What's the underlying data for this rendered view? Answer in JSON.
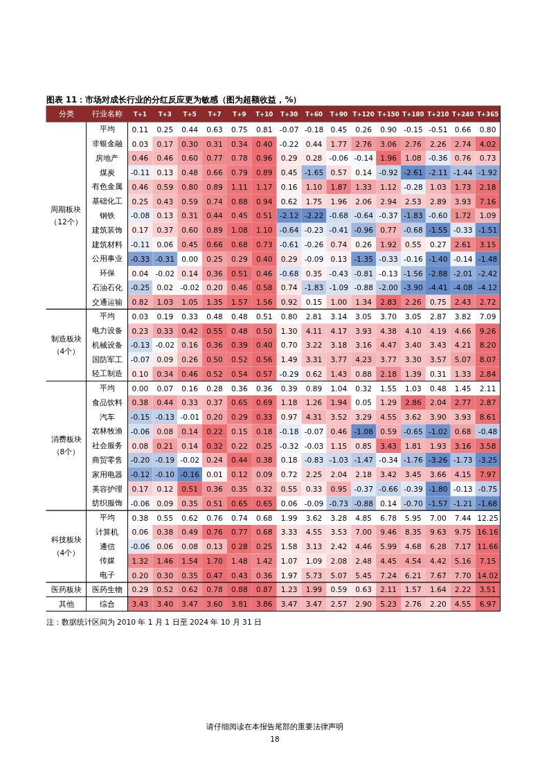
{
  "chart_data": {
    "type": "heatmap",
    "title": "图表 11：市场对成长行业的分红反应更为敏感（图为超额收益，%）",
    "categories": [
      "T+1",
      "T+3",
      "T+5",
      "T+7",
      "T+9",
      "T+10",
      "T+30",
      "T+60",
      "T+90",
      "T+120",
      "T+150",
      "T+180",
      "T+210",
      "T+240",
      "T+365"
    ],
    "y_categories": [
      "平均",
      "非银金融",
      "房地产",
      "煤炭",
      "有色金属",
      "基础化工",
      "钢铁",
      "建筑装饰",
      "建筑材料",
      "公用事业",
      "环保",
      "石油石化",
      "交通运输",
      "平均",
      "电力设备",
      "机械设备",
      "国防军工",
      "轻工制造",
      "平均",
      "食品饮料",
      "汽车",
      "农林牧渔",
      "社会服务",
      "商贸零售",
      "家用电器",
      "美容护理",
      "纺织服饰",
      "平均",
      "计算机",
      "通信",
      "传媒",
      "电子",
      "医药生物",
      "综合"
    ],
    "y2_categories": [
      null,
      null,
      null,
      null,
      null,
      null,
      "周期板块（12个）",
      null,
      null,
      null,
      null,
      null,
      null,
      null,
      null,
      "制造板块（4个）",
      null,
      null,
      null,
      null,
      null,
      null,
      "消费板块（8个）",
      null,
      null,
      null,
      null,
      null,
      null,
      "科技板块（4个）",
      null,
      null,
      "医药板块",
      "其他"
    ],
    "cell_labels": [
      [
        "0.11",
        "0.25",
        "0.44",
        "0.63",
        "0.75",
        "0.81",
        "-0.07",
        "-0.18",
        "0.45",
        "0.26",
        "0.90",
        "-0.15",
        "-0.51",
        "0.66",
        "0.80"
      ],
      [
        "0.03",
        "0.17",
        "0.30",
        "0.31",
        "0.34",
        "0.40",
        "-0.22",
        "0.44",
        "1.77",
        "2.76",
        "3.06",
        "2.76",
        "2.26",
        "2.74",
        "4.02"
      ],
      [
        "0.46",
        "0.46",
        "0.60",
        "0.77",
        "0.78",
        "0.96",
        "0.29",
        "0.28",
        "-0.06",
        "-0.14",
        "1.96",
        "1.08",
        "-0.36",
        "0.76",
        "0.73"
      ],
      [
        "-0.11",
        "0.13",
        "0.48",
        "0.66",
        "0.79",
        "0.89",
        "0.45",
        "-1.65",
        "0.57",
        "0.14",
        "-0.92",
        "-2.61",
        "-2.11",
        "-1.44",
        "-1.92"
      ],
      [
        "0.46",
        "0.59",
        "0.80",
        "0.89",
        "1.11",
        "1.17",
        "0.16",
        "1.10",
        "1.87",
        "1.33",
        "1.12",
        "-0.28",
        "1.03",
        "1.73",
        "2.18"
      ],
      [
        "0.25",
        "0.43",
        "0.59",
        "0.74",
        "0.88",
        "0.94",
        "0.62",
        "1.75",
        "1.96",
        "2.06",
        "2.94",
        "2.53",
        "2.89",
        "3.93",
        "7.16"
      ],
      [
        "-0.08",
        "0.13",
        "0.31",
        "0.44",
        "0.45",
        "0.51",
        "-2.12",
        "-2.22",
        "-0.68",
        "-0.64",
        "-0.37",
        "-1.83",
        "-0.60",
        "1.72",
        "1.09"
      ],
      [
        "0.17",
        "0.37",
        "0.60",
        "0.89",
        "1.08",
        "1.10",
        "-0.64",
        "-0.23",
        "-0.41",
        "-0.96",
        "0.77",
        "-0.68",
        "-1.55",
        "-0.33",
        "-1.51"
      ],
      [
        "-0.11",
        "0.06",
        "0.45",
        "0.66",
        "0.68",
        "0.73",
        "-0.61",
        "-0.26",
        "0.74",
        "0.26",
        "1.92",
        "0.55",
        "0.27",
        "2.61",
        "3.15"
      ],
      [
        "-0.33",
        "-0.31",
        "0.00",
        "0.25",
        "0.29",
        "0.40",
        "0.29",
        "-0.09",
        "0.13",
        "-1.35",
        "-0.33",
        "-0.16",
        "-1.40",
        "-0.14",
        "-1.48"
      ],
      [
        "0.04",
        "-0.02",
        "0.14",
        "0.36",
        "0.51",
        "0.46",
        "-0.68",
        "0.35",
        "-0.43",
        "-0.81",
        "-0.13",
        "-1.56",
        "-2.88",
        "-2.01",
        "-2.42"
      ],
      [
        "-0.25",
        "0.02",
        "-0.02",
        "0.20",
        "0.46",
        "0.58",
        "0.74",
        "-1.83",
        "-1.09",
        "-0.88",
        "-2.00",
        "-3.90",
        "-4.41",
        "-4.08",
        "-4.12"
      ],
      [
        "0.82",
        "1.03",
        "1.05",
        "1.35",
        "1.57",
        "1.56",
        "0.92",
        "0.15",
        "1.00",
        "1.34",
        "2.83",
        "2.26",
        "0.75",
        "2.43",
        "2.72"
      ],
      [
        "0.03",
        "0.19",
        "0.33",
        "0.48",
        "0.48",
        "0.51",
        "0.80",
        "2.81",
        "3.14",
        "3.05",
        "3.70",
        "3.05",
        "2.87",
        "3.82",
        "7.09"
      ],
      [
        "0.23",
        "0.33",
        "0.42",
        "0.55",
        "0.48",
        "0.50",
        "1.30",
        "4.11",
        "4.17",
        "3.93",
        "4.38",
        "4.10",
        "4.19",
        "4.66",
        "9.26"
      ],
      [
        "-0.13",
        "-0.02",
        "0.16",
        "0.36",
        "0.39",
        "0.40",
        "0.70",
        "3.22",
        "3.18",
        "3.16",
        "4.47",
        "3.40",
        "3.43",
        "4.21",
        "8.20"
      ],
      [
        "-0.07",
        "0.09",
        "0.26",
        "0.50",
        "0.52",
        "0.56",
        "1.49",
        "3.31",
        "3.77",
        "4.23",
        "3.77",
        "3.30",
        "3.57",
        "5.07",
        "8.07"
      ],
      [
        "0.10",
        "0.34",
        "0.46",
        "0.52",
        "0.54",
        "0.57",
        "-0.29",
        "0.62",
        "1.43",
        "0.88",
        "2.18",
        "1.39",
        "0.31",
        "1.33",
        "2.84"
      ],
      [
        "0.00",
        "0.07",
        "0.16",
        "0.28",
        "0.36",
        "0.36",
        "0.39",
        "0.89",
        "1.04",
        "0.32",
        "1.55",
        "1.03",
        "0.48",
        "1.45",
        "2.11"
      ],
      [
        "0.38",
        "0.44",
        "0.33",
        "0.37",
        "0.65",
        "0.69",
        "1.18",
        "1.26",
        "1.94",
        "0.05",
        "1.29",
        "2.86",
        "2.04",
        "2.77",
        "2.87"
      ],
      [
        "-0.15",
        "-0.13",
        "-0.01",
        "0.20",
        "0.29",
        "0.33",
        "0.97",
        "4.31",
        "3.52",
        "3.29",
        "4.55",
        "3.62",
        "3.90",
        "3.93",
        "8.61"
      ],
      [
        "-0.06",
        "0.08",
        "0.14",
        "0.22",
        "0.15",
        "0.18",
        "-0.18",
        "-0.07",
        "0.46",
        "-1.08",
        "0.59",
        "-0.65",
        "-1.02",
        "0.68",
        "-0.48"
      ],
      [
        "0.08",
        "0.21",
        "0.14",
        "0.32",
        "0.22",
        "0.25",
        "-0.32",
        "-0.03",
        "1.15",
        "0.85",
        "3.43",
        "1.81",
        "1.93",
        "3.16",
        "3.58"
      ],
      [
        "-0.20",
        "-0.19",
        "-0.02",
        "0.24",
        "0.44",
        "0.38",
        "0.18",
        "-0.83",
        "-1.03",
        "-1.47",
        "-0.34",
        "-1.76",
        "-3.26",
        "-1.73",
        "-3.25"
      ],
      [
        "-0.12",
        "-0.10",
        "-0.16",
        "0.01",
        "0.12",
        "0.09",
        "0.72",
        "2.25",
        "2.04",
        "2.18",
        "3.42",
        "3.45",
        "3.66",
        "4.15",
        "7.97"
      ],
      [
        "0.17",
        "0.12",
        "0.51",
        "0.36",
        "0.35",
        "0.32",
        "0.55",
        "0.33",
        "0.95",
        "-0.37",
        "-0.66",
        "-0.39",
        "-1.80",
        "-0.13",
        "-0.75"
      ],
      [
        "-0.06",
        "0.09",
        "0.35",
        "0.51",
        "0.65",
        "0.65",
        "0.06",
        "-0.09",
        "-0.73",
        "-0.88",
        "0.14",
        "-0.70",
        "-1.57",
        "-1.21",
        "-1.68"
      ],
      [
        "0.38",
        "0.55",
        "0.62",
        "0.76",
        "0.74",
        "0.68",
        "1.99",
        "3.62",
        "3.28",
        "4.85",
        "6.78",
        "5.95",
        "7.00",
        "7.44",
        "12.25"
      ],
      [
        "0.06",
        "0.38",
        "0.49",
        "0.76",
        "0.77",
        "0.68",
        "3.33",
        "4.55",
        "3.53",
        "7.00",
        "9.46",
        "8.35",
        "9.63",
        "9.75",
        "16.16"
      ],
      [
        "-0.06",
        "0.06",
        "0.08",
        "0.13",
        "0.28",
        "0.25",
        "1.58",
        "3.13",
        "2.42",
        "4.46",
        "5.99",
        "4.68",
        "6.28",
        "7.17",
        "11.66"
      ],
      [
        "1.32",
        "1.46",
        "1.54",
        "1.70",
        "1.48",
        "1.42",
        "1.07",
        "1.09",
        "2.08",
        "2.48",
        "4.45",
        "4.54",
        "4.42",
        "5.16",
        "7.15"
      ],
      [
        "0.20",
        "0.30",
        "0.35",
        "0.47",
        "0.43",
        "0.36",
        "1.97",
        "5.73",
        "5.07",
        "5.45",
        "7.24",
        "6.21",
        "7.67",
        "7.70",
        "14.02"
      ],
      [
        "0.29",
        "0.52",
        "0.62",
        "0.78",
        "0.88",
        "0.87",
        "1.23",
        "1.99",
        "0.59",
        "0.63",
        "2.11",
        "1.57",
        "1.64",
        "2.22",
        "3.51"
      ],
      [
        "3.43",
        "3.40",
        "3.47",
        "3.60",
        "3.81",
        "3.86",
        "3.47",
        "3.47",
        "2.57",
        "2.90",
        "5.23",
        "2.76",
        "2.20",
        "4.55",
        "6.97"
      ]
    ],
    "cells": [
      [
        0.11,
        0.25,
        0.44,
        0.63,
        0.75,
        0.81,
        -0.07,
        -0.18,
        0.45,
        0.26,
        0.9,
        -0.15,
        -0.51,
        0.66,
        0.8
      ],
      [
        0.03,
        0.17,
        0.3,
        0.31,
        0.34,
        0.4,
        -0.22,
        0.44,
        1.77,
        2.76,
        3.06,
        2.76,
        2.26,
        2.74,
        4.02
      ],
      [
        0.46,
        0.46,
        0.6,
        0.77,
        0.78,
        0.96,
        0.29,
        0.28,
        -0.06,
        -0.14,
        1.96,
        1.08,
        -0.36,
        0.76,
        0.73
      ],
      [
        -0.11,
        0.13,
        0.48,
        0.66,
        0.79,
        0.89,
        0.45,
        -1.65,
        0.57,
        0.14,
        -0.92,
        -2.61,
        -2.11,
        -1.44,
        -1.92
      ],
      [
        0.46,
        0.59,
        0.8,
        0.89,
        1.11,
        1.17,
        0.16,
        1.1,
        1.87,
        1.33,
        1.12,
        -0.28,
        1.03,
        1.73,
        2.18
      ],
      [
        0.25,
        0.43,
        0.59,
        0.74,
        0.88,
        0.94,
        0.62,
        1.75,
        1.96,
        2.06,
        2.94,
        2.53,
        2.89,
        3.93,
        7.16
      ],
      [
        -0.08,
        0.13,
        0.31,
        0.44,
        0.45,
        0.51,
        -2.12,
        -2.22,
        -0.68,
        -0.64,
        -0.37,
        -1.83,
        -0.6,
        1.72,
        1.09
      ],
      [
        0.17,
        0.37,
        0.6,
        0.89,
        1.08,
        1.1,
        -0.64,
        -0.23,
        -0.41,
        -0.96,
        0.77,
        -0.68,
        -1.55,
        -0.33,
        -1.51
      ],
      [
        -0.11,
        0.06,
        0.45,
        0.66,
        0.68,
        0.73,
        -0.61,
        -0.26,
        0.74,
        0.26,
        1.92,
        0.55,
        0.27,
        2.61,
        3.15
      ],
      [
        -0.33,
        -0.31,
        0.0,
        0.25,
        0.29,
        0.4,
        0.29,
        -0.09,
        0.13,
        -1.35,
        -0.33,
        -0.16,
        -1.4,
        -0.14,
        -1.48
      ],
      [
        0.04,
        -0.02,
        0.14,
        0.36,
        0.51,
        0.46,
        -0.68,
        0.35,
        -0.43,
        -0.81,
        -0.13,
        -1.56,
        -2.88,
        -2.01,
        -2.42
      ],
      [
        -0.25,
        0.02,
        -0.02,
        0.2,
        0.46,
        0.58,
        0.74,
        -1.83,
        -1.09,
        -0.88,
        -2.0,
        -3.9,
        -4.41,
        -4.08,
        -4.12
      ],
      [
        0.82,
        1.03,
        1.05,
        1.35,
        1.57,
        1.56,
        0.92,
        0.15,
        1.0,
        1.34,
        2.83,
        2.26,
        0.75,
        2.43,
        2.72
      ],
      [
        0.03,
        0.19,
        0.33,
        0.48,
        0.48,
        0.51,
        0.8,
        2.81,
        3.14,
        3.05,
        3.7,
        3.05,
        2.87,
        3.82,
        7.09
      ],
      [
        0.23,
        0.33,
        0.42,
        0.55,
        0.48,
        0.5,
        1.3,
        4.11,
        4.17,
        3.93,
        4.38,
        4.1,
        4.19,
        4.66,
        9.26
      ],
      [
        -0.13,
        -0.02,
        0.16,
        0.36,
        0.39,
        0.4,
        0.7,
        3.22,
        3.18,
        3.16,
        4.47,
        3.4,
        3.43,
        4.21,
        8.2
      ],
      [
        -0.07,
        0.09,
        0.26,
        0.5,
        0.52,
        0.56,
        1.49,
        3.31,
        3.77,
        4.23,
        3.77,
        3.3,
        3.57,
        5.07,
        8.07
      ],
      [
        0.1,
        0.34,
        0.46,
        0.52,
        0.54,
        0.57,
        -0.29,
        0.62,
        1.43,
        0.88,
        2.18,
        1.39,
        0.31,
        1.33,
        2.84
      ],
      [
        0.0,
        0.07,
        0.16,
        0.28,
        0.36,
        0.36,
        0.39,
        0.89,
        1.04,
        0.32,
        1.55,
        1.03,
        0.48,
        1.45,
        2.11
      ],
      [
        0.38,
        0.44,
        0.33,
        0.37,
        0.65,
        0.69,
        1.18,
        1.26,
        1.94,
        0.05,
        1.29,
        2.86,
        2.04,
        2.77,
        2.87
      ],
      [
        -0.15,
        -0.13,
        -0.01,
        0.2,
        0.29,
        0.33,
        0.97,
        4.31,
        3.52,
        3.29,
        4.55,
        3.62,
        3.9,
        3.93,
        8.61
      ],
      [
        -0.06,
        0.08,
        0.14,
        0.22,
        0.15,
        0.18,
        -0.18,
        -0.07,
        0.46,
        -1.08,
        0.59,
        -0.65,
        -1.02,
        0.68,
        -0.48
      ],
      [
        0.08,
        0.21,
        0.14,
        0.32,
        0.22,
        0.25,
        -0.32,
        -0.03,
        1.15,
        0.85,
        3.43,
        1.81,
        1.93,
        3.16,
        3.58
      ],
      [
        -0.2,
        -0.19,
        -0.02,
        0.24,
        0.44,
        0.38,
        0.18,
        -0.83,
        -1.03,
        -1.47,
        -0.34,
        -1.76,
        -3.26,
        -1.73,
        -3.25
      ],
      [
        -0.12,
        -0.1,
        -0.16,
        0.01,
        0.12,
        0.09,
        0.72,
        2.25,
        2.04,
        2.18,
        3.42,
        3.45,
        3.66,
        4.15,
        7.97
      ],
      [
        0.17,
        0.12,
        0.51,
        0.36,
        0.35,
        0.32,
        0.55,
        0.33,
        0.95,
        -0.37,
        -0.66,
        -0.39,
        -1.8,
        -0.13,
        -0.75
      ],
      [
        -0.06,
        0.09,
        0.35,
        0.51,
        0.65,
        0.65,
        0.06,
        -0.09,
        -0.73,
        -0.88,
        0.14,
        -0.7,
        -1.57,
        -1.21,
        -1.68
      ],
      [
        0.38,
        0.55,
        0.62,
        0.76,
        0.74,
        0.68,
        1.99,
        3.62,
        3.28,
        4.85,
        6.78,
        5.95,
        7.0,
        7.44,
        12.25
      ],
      [
        0.06,
        0.38,
        0.49,
        0.76,
        0.77,
        0.68,
        3.33,
        4.55,
        3.53,
        7.0,
        9.46,
        8.35,
        9.63,
        9.75,
        16.16
      ],
      [
        -0.06,
        0.06,
        0.08,
        0.13,
        0.28,
        0.25,
        1.58,
        3.13,
        2.42,
        4.46,
        5.99,
        4.68,
        6.28,
        7.17,
        11.66
      ],
      [
        1.32,
        1.46,
        1.54,
        1.7,
        1.48,
        1.42,
        1.07,
        1.09,
        2.08,
        2.48,
        4.45,
        4.54,
        4.42,
        5.16,
        7.15
      ],
      [
        0.2,
        0.3,
        0.35,
        0.47,
        0.43,
        0.36,
        1.97,
        5.73,
        5.07,
        5.45,
        7.24,
        6.21,
        7.67,
        7.7,
        14.02
      ],
      [
        0.29,
        0.52,
        0.62,
        0.78,
        0.88,
        0.87,
        1.23,
        1.99,
        0.59,
        0.63,
        2.11,
        1.57,
        1.64,
        2.22,
        3.51
      ],
      [
        3.43,
        3.4,
        3.47,
        3.6,
        3.81,
        3.86,
        3.47,
        3.47,
        2.57,
        2.9,
        5.23,
        2.76,
        2.2,
        4.55,
        6.97
      ]
    ],
    "data_labels": true,
    "annotations": [
      "分类",
      "行业名称",
      "注：数据统计区间为 2010 年 1 月 1 日至 2024 年 10 月 31 日",
      "请仔细阅读在本报告尾部的重要法律声明",
      "18"
    ]
  }
}
